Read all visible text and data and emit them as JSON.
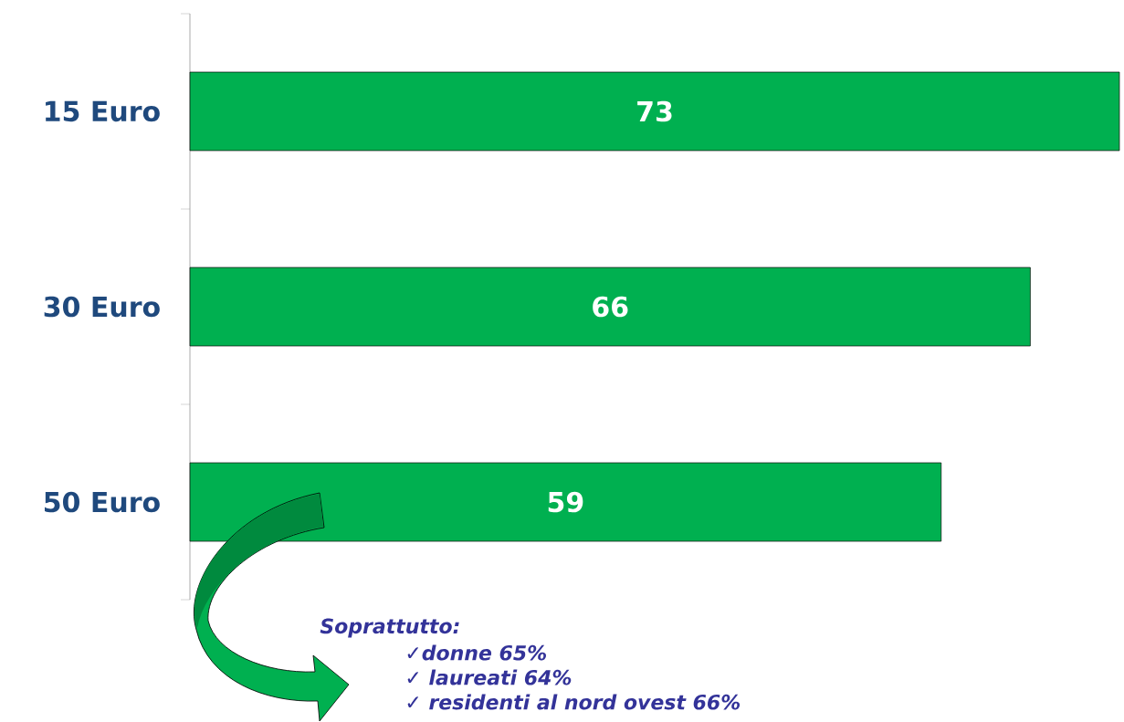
{
  "chart_data": {
    "type": "bar",
    "orientation": "horizontal",
    "categories": [
      "15 Euro",
      "30 Euro",
      "50 Euro"
    ],
    "values": [
      73,
      66,
      59
    ],
    "color": "#00b050",
    "data_labels": true,
    "annotations": [
      "Soprattutto:",
      "✓donne 65%",
      "✓ laureati 64%",
      "✓ residenti al nord ovest 66%"
    ]
  }
}
